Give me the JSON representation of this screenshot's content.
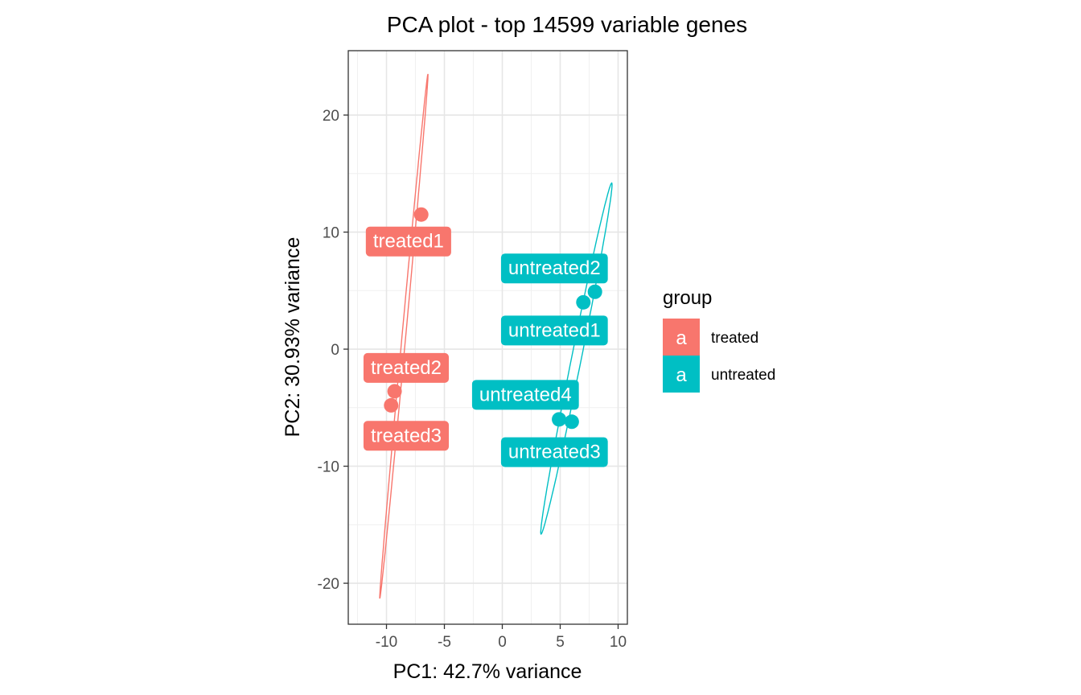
{
  "chart_data": {
    "type": "scatter",
    "title": "PCA plot - top 14599 variable genes",
    "xlabel": "PC1: 42.7% variance",
    "ylabel": "PC2: 30.93% variance",
    "xlim": [
      -13.3,
      10.8
    ],
    "ylim": [
      -23.5,
      25.5
    ],
    "x_ticks": [
      -10,
      -5,
      0,
      5,
      10
    ],
    "y_ticks": [
      -20,
      -10,
      0,
      10,
      20
    ],
    "x_tick_labels": [
      "-10",
      "-5",
      "0",
      "5",
      "10"
    ],
    "y_tick_labels": [
      "-20",
      "-10",
      "0",
      "10",
      "20"
    ],
    "grid": true,
    "legend": {
      "title": "group",
      "position": "right",
      "key_glyph": "a",
      "entries": [
        {
          "name": "treated",
          "color": "#F8766D"
        },
        {
          "name": "untreated",
          "color": "#00BFC4"
        }
      ]
    },
    "series": [
      {
        "name": "treated",
        "color": "#F8766D",
        "points": [
          {
            "label": "treated1",
            "x": -7.0,
            "y": 11.5,
            "label_x": -8.1,
            "label_y": 9.3
          },
          {
            "label": "treated2",
            "x": -9.3,
            "y": -3.6,
            "label_x": -8.3,
            "label_y": -1.5
          },
          {
            "label": "treated3",
            "x": -9.6,
            "y": -4.8,
            "label_x": -8.3,
            "label_y": -7.3
          }
        ],
        "ellipse": {
          "cx": -8.5,
          "cy": 1.1,
          "a": 22.5,
          "b": 0.16,
          "angle_deg": 84.7
        }
      },
      {
        "name": "untreated",
        "color": "#00BFC4",
        "points": [
          {
            "label": "untreated2",
            "x": 8.0,
            "y": 4.9,
            "label_x": 4.5,
            "label_y": 7.0
          },
          {
            "label": "untreated1",
            "x": 7.0,
            "y": 4.0,
            "label_x": 4.5,
            "label_y": 1.7
          },
          {
            "label": "untreated4",
            "x": 4.9,
            "y": -6.0,
            "label_x": 2.0,
            "label_y": -3.8
          },
          {
            "label": "untreated3",
            "x": 6.0,
            "y": -6.2,
            "label_x": 4.5,
            "label_y": -8.7
          }
        ],
        "ellipse": {
          "cx": 6.4,
          "cy": -0.8,
          "a": 15.3,
          "b": 0.42,
          "angle_deg": 78.5
        }
      }
    ]
  }
}
